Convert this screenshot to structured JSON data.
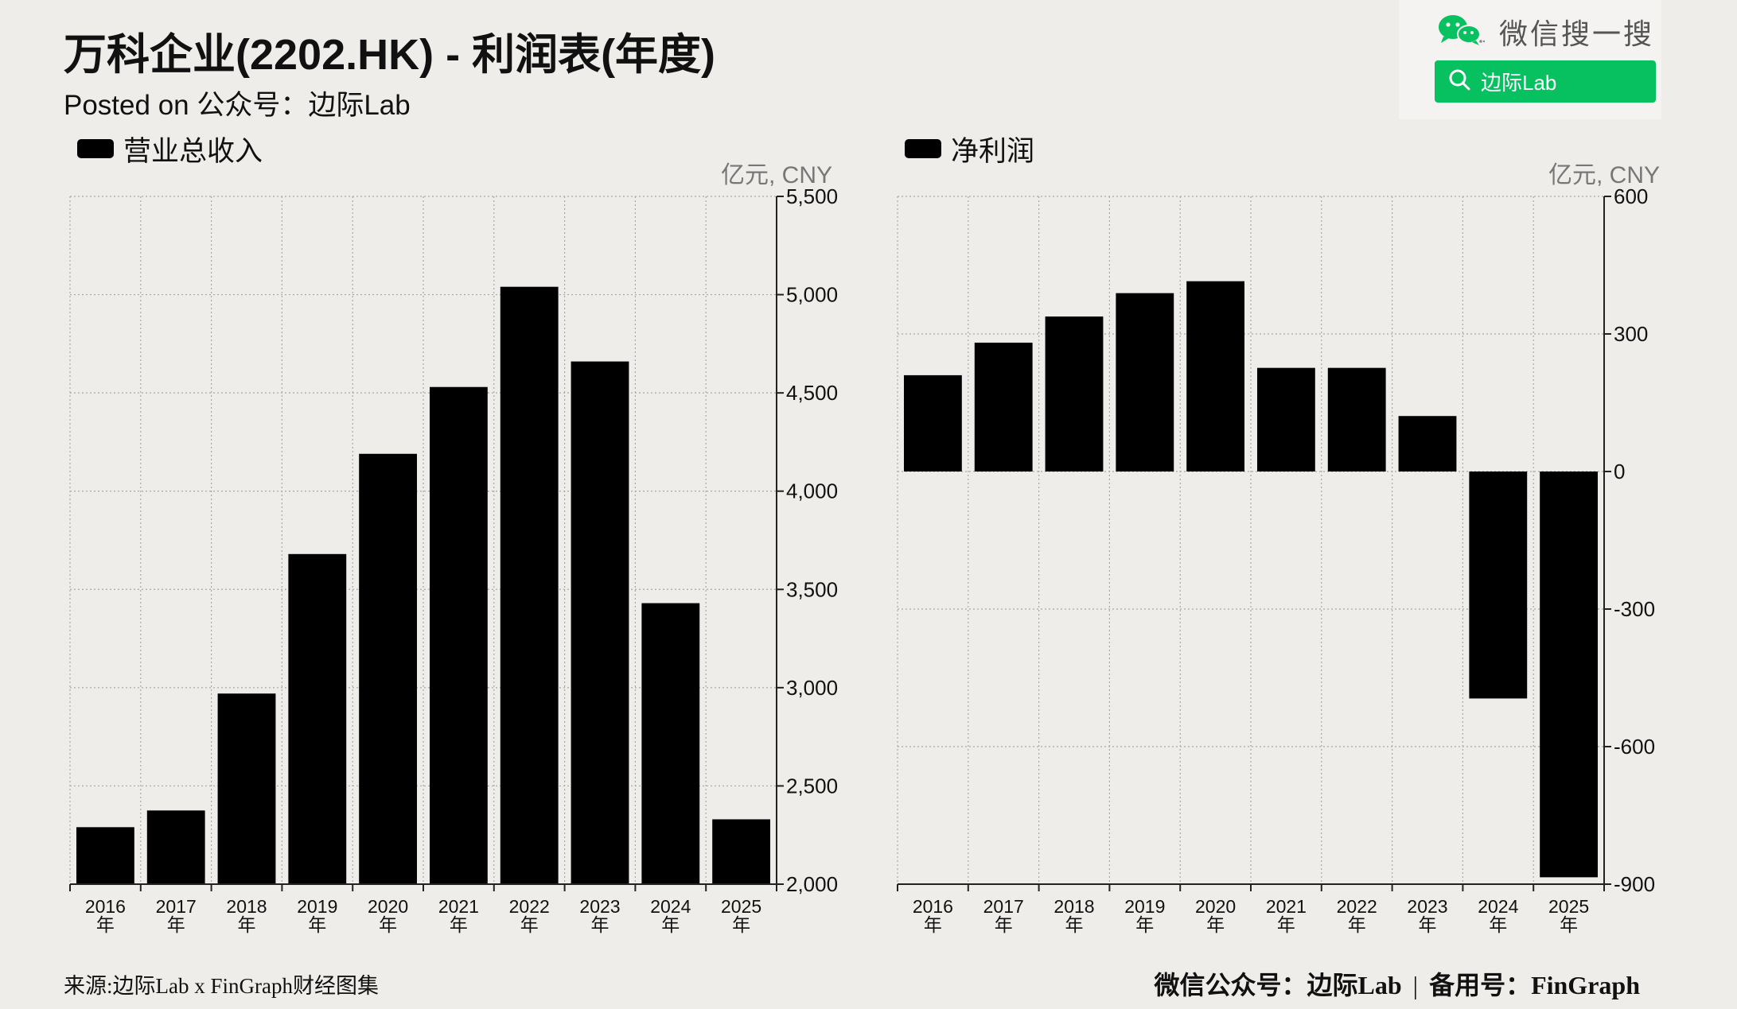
{
  "header": {
    "title": "万科企业(2202.HK) - 利润表(年度)",
    "subtitle": "Posted on 公众号：边际Lab"
  },
  "wechat": {
    "label": "微信搜一搜",
    "search_text": "边际Lab",
    "icon": "wechat-icon",
    "search_icon": "search-icon",
    "accent_color": "#07c160"
  },
  "chart_data": [
    {
      "type": "bar",
      "legend": "营业总收入",
      "unit_label": "亿元, CNY",
      "categories": [
        "2016年",
        "2017年",
        "2018年",
        "2019年",
        "2020年",
        "2021年",
        "2022年",
        "2023年",
        "2024年",
        "2025年"
      ],
      "category_lines": [
        [
          "2016",
          "年"
        ],
        [
          "2017",
          "年"
        ],
        [
          "2018",
          "年"
        ],
        [
          "2019",
          "年"
        ],
        [
          "2020",
          "年"
        ],
        [
          "2021",
          "年"
        ],
        [
          "2022",
          "年"
        ],
        [
          "2023",
          "年"
        ],
        [
          "2024",
          "年"
        ],
        [
          "2025",
          "年"
        ]
      ],
      "values": [
        2290,
        2375,
        2970,
        3680,
        4190,
        4530,
        5040,
        4660,
        3430,
        2330
      ],
      "ylim": [
        2000,
        5500
      ],
      "yticks": [
        2000,
        2500,
        3000,
        3500,
        4000,
        4500,
        5000,
        5500
      ],
      "ytick_labels": [
        "2,000",
        "2,500",
        "3,000",
        "3,500",
        "4,000",
        "4,500",
        "5,000",
        "5,500"
      ],
      "axis_side": "right",
      "grid": true,
      "bar_color": "#000000"
    },
    {
      "type": "bar",
      "legend": "净利润",
      "unit_label": "亿元, CNY",
      "categories": [
        "2016年",
        "2017年",
        "2018年",
        "2019年",
        "2020年",
        "2021年",
        "2022年",
        "2023年",
        "2024年",
        "2025年"
      ],
      "category_lines": [
        [
          "2016",
          "年"
        ],
        [
          "2017",
          "年"
        ],
        [
          "2018",
          "年"
        ],
        [
          "2019",
          "年"
        ],
        [
          "2020",
          "年"
        ],
        [
          "2021",
          "年"
        ],
        [
          "2022",
          "年"
        ],
        [
          "2023",
          "年"
        ],
        [
          "2024",
          "年"
        ],
        [
          "2025",
          "年"
        ]
      ],
      "values": [
        210,
        281,
        338,
        389,
        415,
        226,
        226,
        121,
        -495,
        -885
      ],
      "ylim": [
        -900,
        600
      ],
      "yticks": [
        -900,
        -600,
        -300,
        0,
        300,
        600
      ],
      "ytick_labels": [
        "-900",
        "-600",
        "-300",
        "0",
        "300",
        "600"
      ],
      "axis_side": "right",
      "grid": true,
      "bar_color": "#000000"
    }
  ],
  "footer": {
    "source": "来源:边际Lab x FinGraph财经图集",
    "account": "微信公众号：边际Lab",
    "separator": "|",
    "backup": "备用号：FinGraph"
  }
}
